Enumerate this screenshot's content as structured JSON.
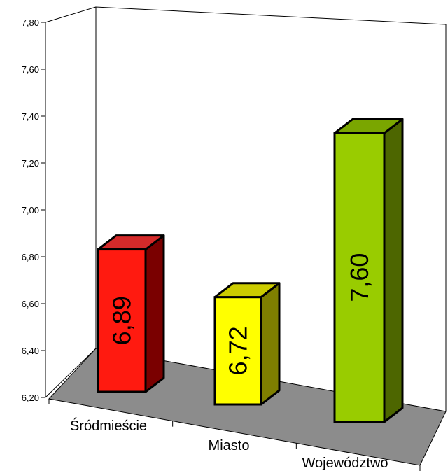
{
  "chart_data": {
    "type": "bar",
    "title": "",
    "xlabel": "",
    "ylabel": "",
    "categories": [
      "Śródmieście",
      "Miasto",
      "Województwo"
    ],
    "values": [
      6.89,
      6.72,
      7.6
    ],
    "value_labels": [
      "6,89",
      "6,72",
      "7,60"
    ],
    "ylim": [
      6.2,
      7.8
    ],
    "y_ticks": [
      6.2,
      6.4,
      6.6,
      6.8,
      7.0,
      7.2,
      7.4,
      7.6,
      7.8
    ],
    "y_tick_labels": [
      "6,20",
      "6,40",
      "6,60",
      "6,80",
      "7,00",
      "7,20",
      "7,40",
      "7,60",
      "7,80"
    ],
    "grid": false,
    "legend": "none",
    "style": "3d",
    "bar_colors": [
      {
        "front": "#ff1a10",
        "top": "#d42a2a",
        "side": "#7a0000"
      },
      {
        "front": "#ffff00",
        "top": "#cccc00",
        "side": "#7f7f00"
      },
      {
        "front": "#99cc00",
        "top": "#7aa600",
        "side": "#4d6600"
      }
    ],
    "floor_color": "#8c8c8c"
  }
}
